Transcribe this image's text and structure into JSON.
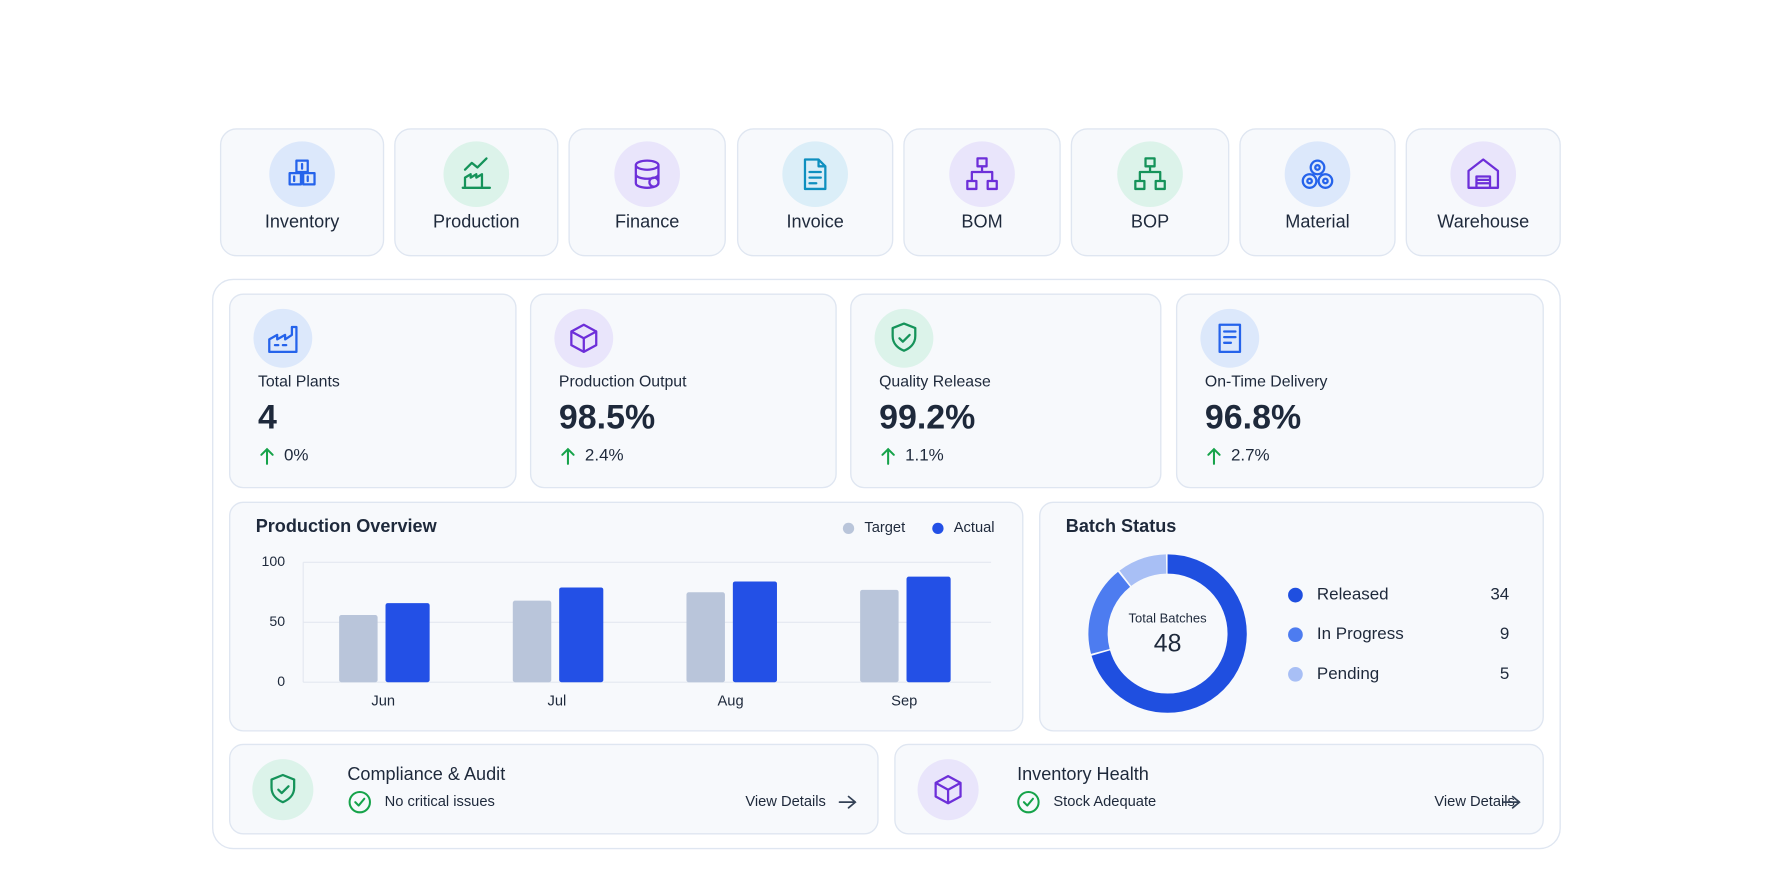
{
  "nav": [
    "Inventory",
    "Production",
    "Finance",
    "Invoice",
    "BOM",
    "BOP",
    "Material",
    "Warehouse"
  ],
  "kpis": [
    {
      "title": "Total Plants",
      "value": "4",
      "change": "0%"
    },
    {
      "title": "Production Output",
      "value": "98.5%",
      "change": "2.4%"
    },
    {
      "title": "Quality Release",
      "value": "99.2%",
      "change": "1.1%"
    },
    {
      "title": "On-Time Delivery",
      "value": "96.8%",
      "change": "2.7%"
    }
  ],
  "chart_data": [
    {
      "type": "bar",
      "title": "Production Overview",
      "categories": [
        "Jun",
        "Jul",
        "Aug",
        "Sep"
      ],
      "series": [
        {
          "name": "Target",
          "color": "#b9c5da",
          "values": [
            56,
            68,
            75,
            77
          ]
        },
        {
          "name": "Actual",
          "color": "#2350e6",
          "values": [
            66,
            79,
            84,
            88
          ]
        }
      ],
      "ylim": [
        0,
        100
      ],
      "yticks": [
        0,
        50,
        100
      ],
      "grid": true
    },
    {
      "type": "donut",
      "title": "Batch Status",
      "center_label": "Total Batches",
      "total": 48,
      "categories": [
        "Released",
        "In Progress",
        "Pending"
      ],
      "values": [
        34,
        9,
        5
      ],
      "colors": [
        "#1f4fe0",
        "#4d7cf0",
        "#a8bff5"
      ]
    }
  ],
  "bottom_cards": [
    {
      "title": "Compliance & Audit",
      "status": "No critical issues",
      "link": "View Details"
    },
    {
      "title": "Inventory Health",
      "status": "Stock Adequate",
      "link": "View Details"
    }
  ]
}
